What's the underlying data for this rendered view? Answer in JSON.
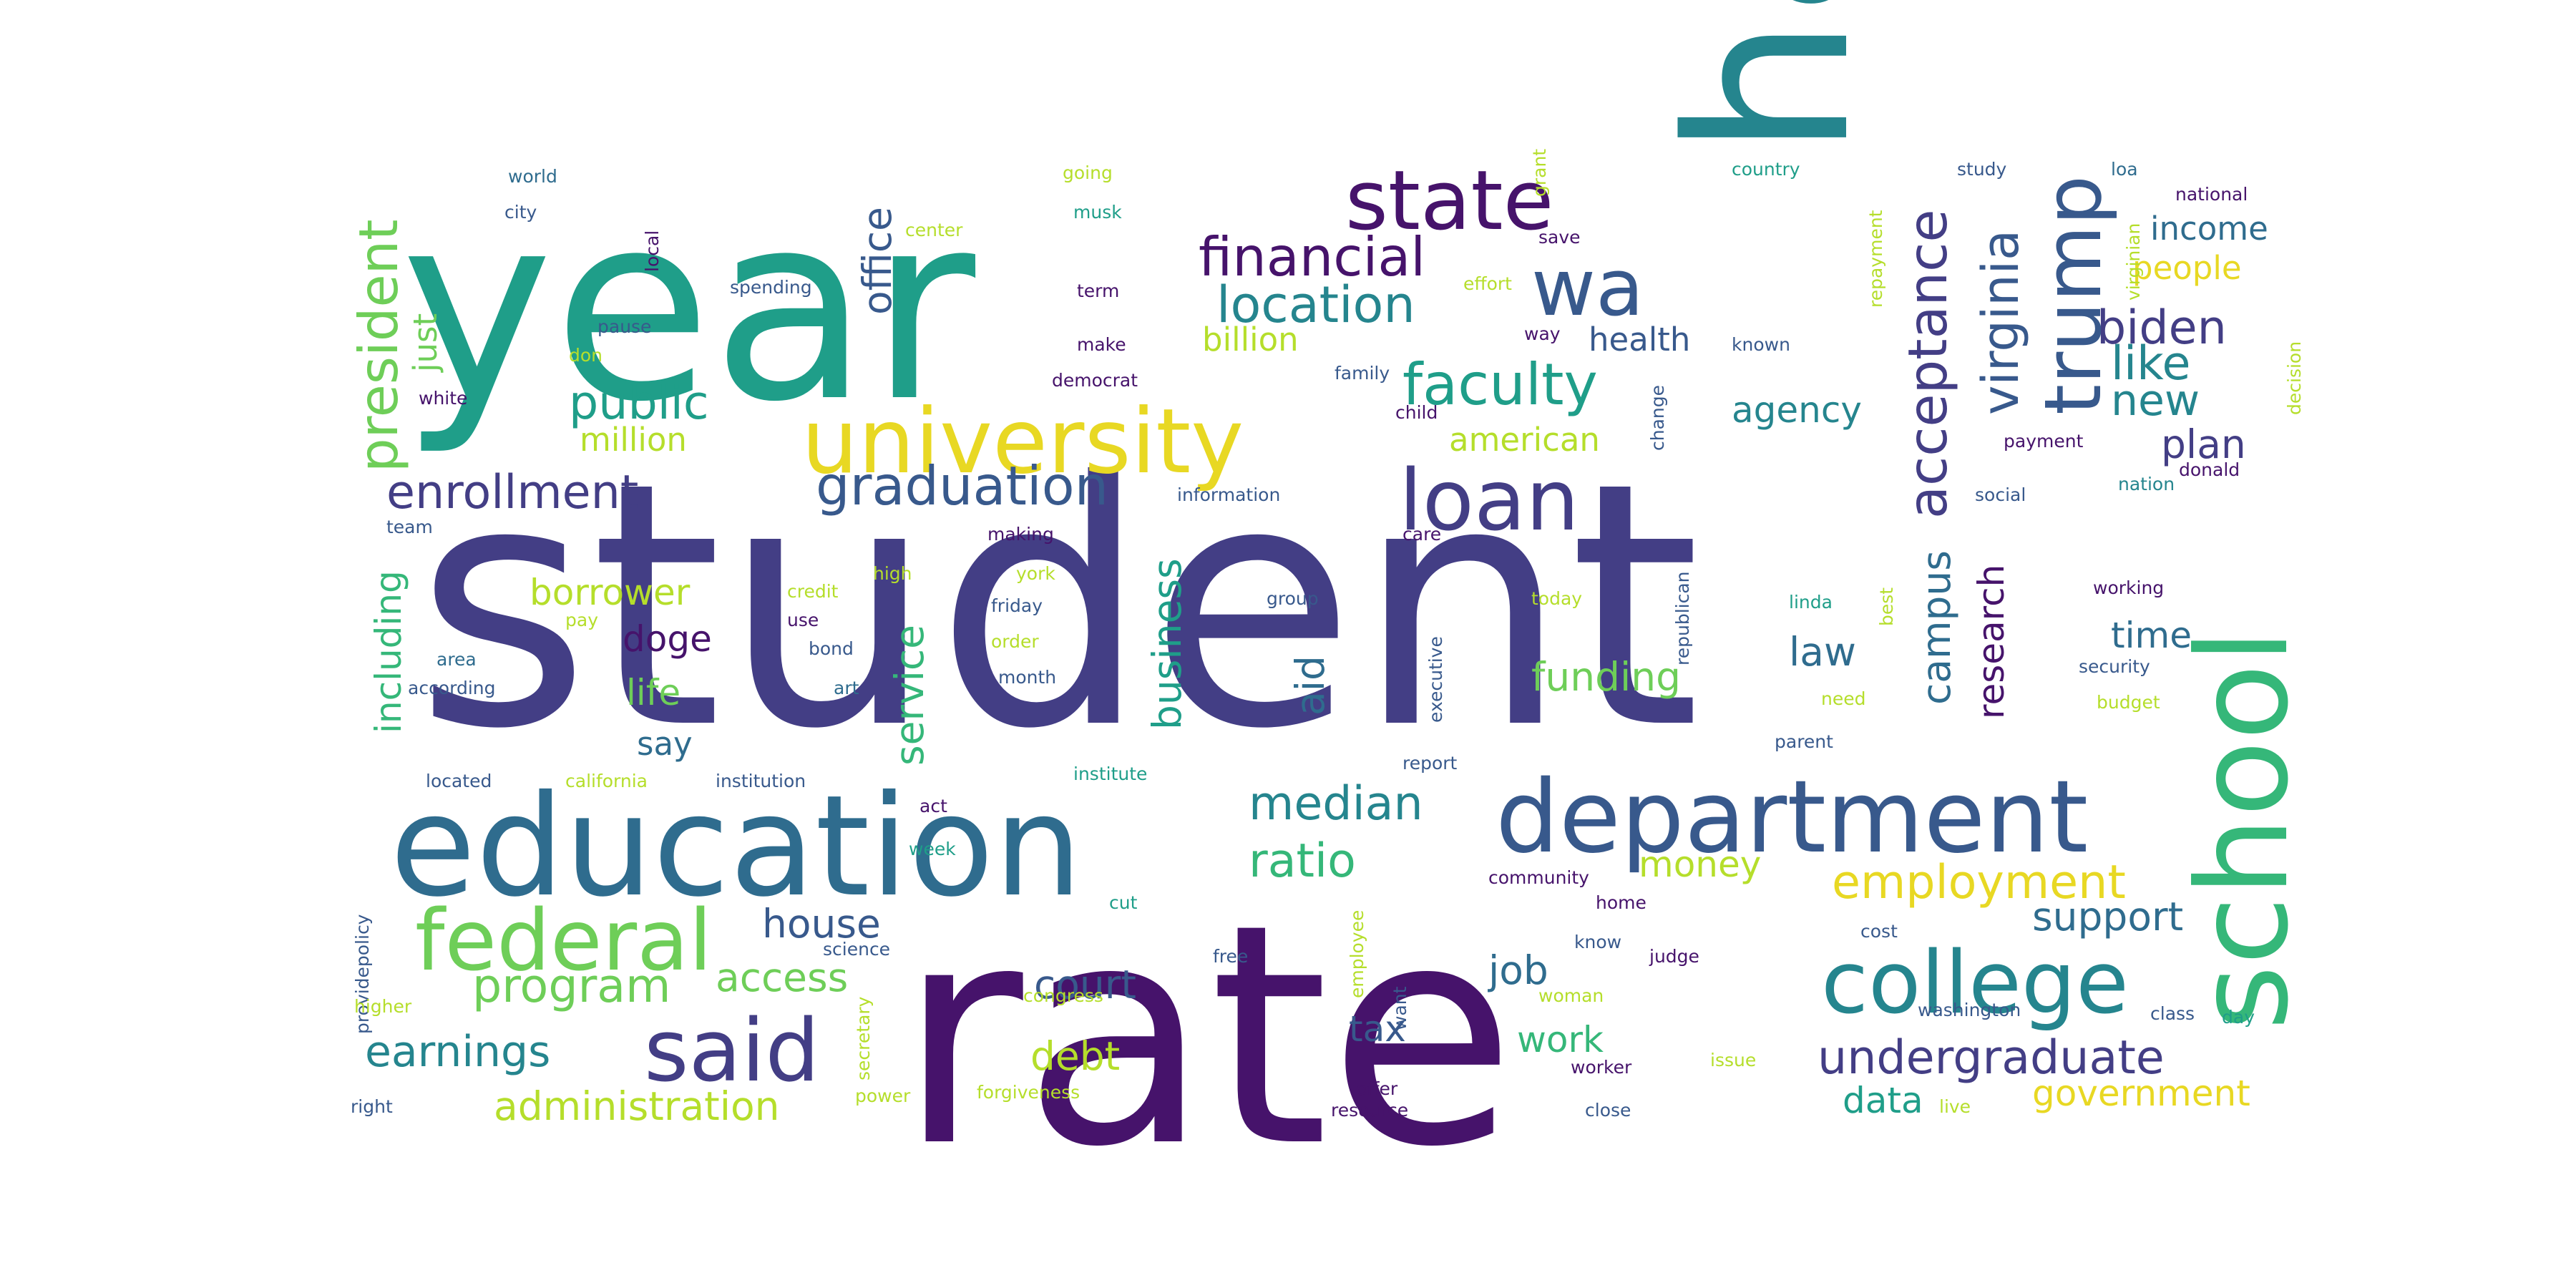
{
  "colors": {
    "purple": "#46136b",
    "indigo": "#433e85",
    "blue": "#38598c",
    "steel": "#2f6c8e",
    "teal": "#25858e",
    "sea": "#1f9e89",
    "green": "#35b779",
    "lime": "#6ece58",
    "chartreuse": "#b5de2b",
    "yellow": "#e8d823"
  },
  "words": [
    {
      "text": "student",
      "color": "indigo"
    },
    {
      "text": "rate",
      "color": "purple"
    },
    {
      "text": "year",
      "color": "sea"
    },
    {
      "text": "ha",
      "color": "teal"
    },
    {
      "text": "education",
      "color": "steel"
    },
    {
      "text": "school",
      "color": "green"
    },
    {
      "text": "department",
      "color": "blue"
    },
    {
      "text": "university",
      "color": "yellow"
    },
    {
      "text": "college",
      "color": "teal"
    },
    {
      "text": "said",
      "color": "indigo"
    },
    {
      "text": "federal",
      "color": "lime"
    },
    {
      "text": "loan",
      "color": "indigo"
    },
    {
      "text": "state",
      "color": "purple"
    },
    {
      "text": "trump",
      "color": "blue"
    },
    {
      "text": "wa",
      "color": "blue"
    },
    {
      "text": "financial",
      "color": "purple"
    },
    {
      "text": "faculty",
      "color": "sea"
    },
    {
      "text": "location",
      "color": "teal"
    },
    {
      "text": "graduation",
      "color": "blue"
    },
    {
      "text": "enrollment",
      "color": "indigo"
    },
    {
      "text": "public",
      "color": "sea"
    },
    {
      "text": "president",
      "color": "lime"
    },
    {
      "text": "virginia",
      "color": "blue"
    },
    {
      "text": "acceptance",
      "color": "indigo"
    },
    {
      "text": "biden",
      "color": "indigo"
    },
    {
      "text": "like",
      "color": "teal"
    },
    {
      "text": "new",
      "color": "teal"
    },
    {
      "text": "plan",
      "color": "indigo"
    },
    {
      "text": "undergraduate",
      "color": "indigo"
    },
    {
      "text": "employment",
      "color": "yellow"
    },
    {
      "text": "median",
      "color": "teal"
    },
    {
      "text": "ratio",
      "color": "green"
    },
    {
      "text": "earnings",
      "color": "teal"
    },
    {
      "text": "program",
      "color": "lime"
    },
    {
      "text": "administration",
      "color": "chartreuse"
    },
    {
      "text": "house",
      "color": "blue"
    },
    {
      "text": "access",
      "color": "lime"
    },
    {
      "text": "court",
      "color": "blue"
    },
    {
      "text": "debt",
      "color": "chartreuse"
    },
    {
      "text": "tax",
      "color": "blue"
    },
    {
      "text": "work",
      "color": "green"
    },
    {
      "text": "job",
      "color": "steel"
    },
    {
      "text": "data",
      "color": "sea"
    },
    {
      "text": "government",
      "color": "yellow"
    },
    {
      "text": "support",
      "color": "steel"
    },
    {
      "text": "money",
      "color": "chartreuse"
    },
    {
      "text": "time",
      "color": "steel"
    },
    {
      "text": "law",
      "color": "steel"
    },
    {
      "text": "research",
      "color": "purple"
    },
    {
      "text": "campus",
      "color": "steel"
    },
    {
      "text": "funding",
      "color": "lime"
    },
    {
      "text": "aid",
      "color": "steel"
    },
    {
      "text": "business",
      "color": "sea"
    },
    {
      "text": "service",
      "color": "green"
    },
    {
      "text": "office",
      "color": "blue"
    },
    {
      "text": "billion",
      "color": "chartreuse"
    },
    {
      "text": "million",
      "color": "chartreuse"
    },
    {
      "text": "health",
      "color": "blue"
    },
    {
      "text": "agency",
      "color": "teal"
    },
    {
      "text": "american",
      "color": "chartreuse"
    },
    {
      "text": "income",
      "color": "steel"
    },
    {
      "text": "people",
      "color": "yellow"
    },
    {
      "text": "borrower",
      "color": "chartreuse"
    },
    {
      "text": "doge",
      "color": "purple"
    },
    {
      "text": "life",
      "color": "lime"
    },
    {
      "text": "say",
      "color": "steel"
    },
    {
      "text": "including",
      "color": "green"
    },
    {
      "text": "just",
      "color": "lime"
    },
    {
      "text": "world",
      "color": "steel"
    },
    {
      "text": "city",
      "color": "blue"
    },
    {
      "text": "local",
      "color": "purple"
    },
    {
      "text": "going",
      "color": "chartreuse"
    },
    {
      "text": "musk",
      "color": "sea"
    },
    {
      "text": "center",
      "color": "chartreuse"
    },
    {
      "text": "spending",
      "color": "blue"
    },
    {
      "text": "term",
      "color": "purple"
    },
    {
      "text": "make",
      "color": "purple"
    },
    {
      "text": "democrat",
      "color": "purple"
    },
    {
      "text": "grant",
      "color": "chartreuse"
    },
    {
      "text": "save",
      "color": "purple"
    },
    {
      "text": "effort",
      "color": "chartreuse"
    },
    {
      "text": "way",
      "color": "purple"
    },
    {
      "text": "family",
      "color": "blue"
    },
    {
      "text": "known",
      "color": "blue"
    },
    {
      "text": "country",
      "color": "sea"
    },
    {
      "text": "study",
      "color": "blue"
    },
    {
      "text": "loa",
      "color": "steel"
    },
    {
      "text": "national",
      "color": "purple"
    },
    {
      "text": "repayment",
      "color": "chartreuse"
    },
    {
      "text": "virginian",
      "color": "chartreuse"
    },
    {
      "text": "decision",
      "color": "chartreuse"
    },
    {
      "text": "change",
      "color": "blue"
    },
    {
      "text": "child",
      "color": "purple"
    },
    {
      "text": "payment",
      "color": "purple"
    },
    {
      "text": "donald",
      "color": "purple"
    },
    {
      "text": "nation",
      "color": "teal"
    },
    {
      "text": "social",
      "color": "blue"
    },
    {
      "text": "information",
      "color": "blue"
    },
    {
      "text": "pause",
      "color": "blue"
    },
    {
      "text": "don",
      "color": "chartreuse"
    },
    {
      "text": "white",
      "color": "purple"
    },
    {
      "text": "team",
      "color": "blue"
    },
    {
      "text": "making",
      "color": "purple"
    },
    {
      "text": "care",
      "color": "purple"
    },
    {
      "text": "republican",
      "color": "blue"
    },
    {
      "text": "credit",
      "color": "chartreuse"
    },
    {
      "text": "high",
      "color": "chartreuse"
    },
    {
      "text": "pay",
      "color": "chartreuse"
    },
    {
      "text": "use",
      "color": "purple"
    },
    {
      "text": "bond",
      "color": "blue"
    },
    {
      "text": "art",
      "color": "steel"
    },
    {
      "text": "york",
      "color": "chartreuse"
    },
    {
      "text": "friday",
      "color": "blue"
    },
    {
      "text": "order",
      "color": "chartreuse"
    },
    {
      "text": "month",
      "color": "blue"
    },
    {
      "text": "group",
      "color": "blue"
    },
    {
      "text": "today",
      "color": "chartreuse"
    },
    {
      "text": "executive",
      "color": "blue"
    },
    {
      "text": "linda",
      "color": "sea"
    },
    {
      "text": "best",
      "color": "chartreuse"
    },
    {
      "text": "working",
      "color": "purple"
    },
    {
      "text": "security",
      "color": "blue"
    },
    {
      "text": "budget",
      "color": "chartreuse"
    },
    {
      "text": "need",
      "color": "chartreuse"
    },
    {
      "text": "parent",
      "color": "blue"
    },
    {
      "text": "area",
      "color": "steel"
    },
    {
      "text": "according",
      "color": "blue"
    },
    {
      "text": "located",
      "color": "blue"
    },
    {
      "text": "california",
      "color": "chartreuse"
    },
    {
      "text": "institution",
      "color": "blue"
    },
    {
      "text": "act",
      "color": "purple"
    },
    {
      "text": "institute",
      "color": "sea"
    },
    {
      "text": "report",
      "color": "blue"
    },
    {
      "text": "providepolicy",
      "color": "blue"
    },
    {
      "text": "week",
      "color": "sea"
    },
    {
      "text": "community",
      "color": "purple"
    },
    {
      "text": "employee",
      "color": "chartreuse"
    },
    {
      "text": "home",
      "color": "purple"
    },
    {
      "text": "cost",
      "color": "blue"
    },
    {
      "text": "cut",
      "color": "sea"
    },
    {
      "text": "science",
      "color": "blue"
    },
    {
      "text": "secretary",
      "color": "chartreuse"
    },
    {
      "text": "know",
      "color": "blue"
    },
    {
      "text": "judge",
      "color": "purple"
    },
    {
      "text": "free",
      "color": "blue"
    },
    {
      "text": "want",
      "color": "blue"
    },
    {
      "text": "woman",
      "color": "chartreuse"
    },
    {
      "text": "congress",
      "color": "chartreuse"
    },
    {
      "text": "washington",
      "color": "blue"
    },
    {
      "text": "class",
      "color": "blue"
    },
    {
      "text": "day",
      "color": "sea"
    },
    {
      "text": "higher",
      "color": "chartreuse"
    },
    {
      "text": "issue",
      "color": "chartreuse"
    },
    {
      "text": "power",
      "color": "chartreuse"
    },
    {
      "text": "forgiveness",
      "color": "chartreuse"
    },
    {
      "text": "offer",
      "color": "purple"
    },
    {
      "text": "worker",
      "color": "purple"
    },
    {
      "text": "resource",
      "color": "purple"
    },
    {
      "text": "close",
      "color": "blue"
    },
    {
      "text": "live",
      "color": "chartreuse"
    },
    {
      "text": "right",
      "color": "blue"
    }
  ]
}
